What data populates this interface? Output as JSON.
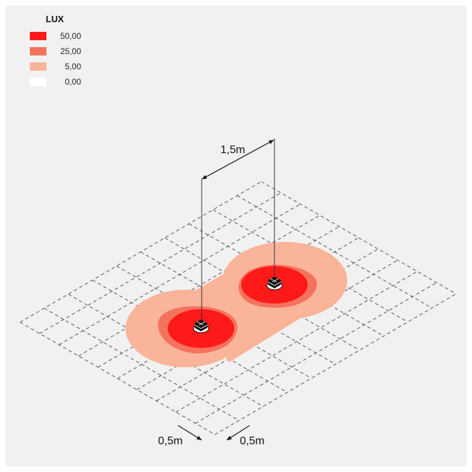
{
  "legend": {
    "title": "LUX",
    "items": [
      {
        "value": "50,00",
        "color": "#ff1a1a"
      },
      {
        "value": "25,00",
        "color": "#f4735d"
      },
      {
        "value": "5,00",
        "color": "#f9b49a"
      },
      {
        "value": "0,00",
        "color": "#ffffff"
      }
    ]
  },
  "dimensions": {
    "spacing": "1,5m",
    "grid_a": "0,5m",
    "grid_b": "0,5m"
  },
  "colors": {
    "background": "#f1f1f1",
    "grid": "#555555",
    "zone_50": "#ff1a1a",
    "zone_25": "#f4735d",
    "zone_5": "#f9b49a"
  },
  "icons": {
    "fixture": "luminaire-icon",
    "dimension_arrow": "arrow-icon"
  }
}
